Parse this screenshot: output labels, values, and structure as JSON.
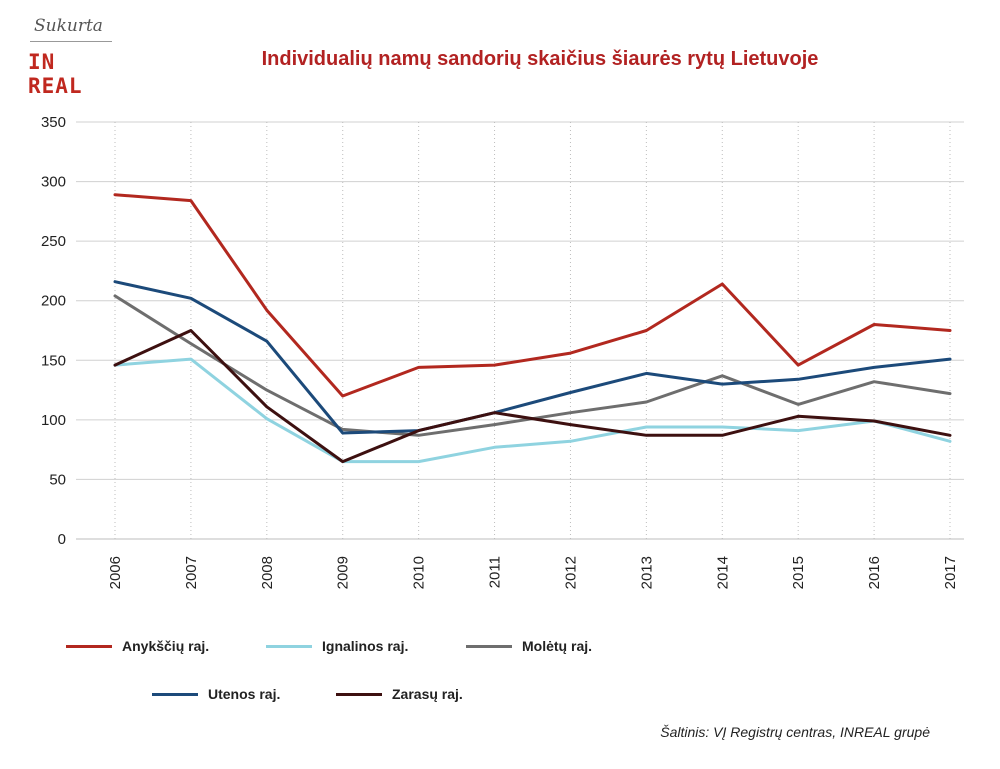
{
  "brand": {
    "script": "Sukurta",
    "logo": "IN REAL"
  },
  "source": "Šaltinis: VĮ Registrų centras, INREAL grupė",
  "chart_data": {
    "type": "line",
    "title": "Individualių namų sandorių skaičius šiaurės rytų Lietuvoje",
    "xlabel": "",
    "ylabel": "",
    "categories": [
      "2006",
      "2007",
      "2008",
      "2009",
      "2010",
      "2011",
      "2012",
      "2013",
      "2014",
      "2015",
      "2016",
      "2017"
    ],
    "ylim": [
      0,
      350
    ],
    "yticks": [
      0,
      50,
      100,
      150,
      200,
      250,
      300,
      350
    ],
    "grid": true,
    "legend_position": "bottom",
    "series": [
      {
        "name": "Anykščių raj.",
        "color": "#b2281f",
        "values": [
          289,
          284,
          192,
          120,
          144,
          146,
          156,
          175,
          214,
          146,
          180,
          175
        ]
      },
      {
        "name": "Ignalinos raj.",
        "color": "#8fd3e0",
        "values": [
          146,
          151,
          101,
          65,
          65,
          77,
          82,
          94,
          94,
          91,
          99,
          82
        ]
      },
      {
        "name": "Molėtų raj.",
        "color": "#6e6e6e",
        "values": [
          204,
          164,
          125,
          92,
          87,
          96,
          106,
          115,
          137,
          113,
          132,
          122
        ]
      },
      {
        "name": "Utenos raj.",
        "color": "#1c4a7a",
        "values": [
          216,
          202,
          166,
          89,
          91,
          106,
          123,
          139,
          130,
          134,
          144,
          151
        ]
      },
      {
        "name": "Zarasų raj.",
        "color": "#3d1010",
        "values": [
          146,
          175,
          111,
          65,
          91,
          106,
          96,
          87,
          87,
          103,
          99,
          87
        ]
      }
    ]
  }
}
